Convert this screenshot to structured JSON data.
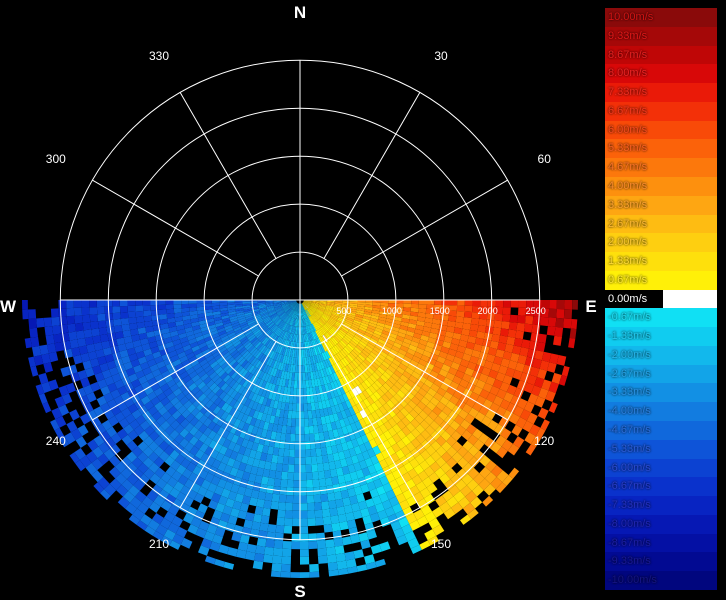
{
  "chart_data": {
    "type": "heatmap",
    "subtype": "polar-radar-velocity",
    "compass": {
      "north": "N",
      "east": "E",
      "south": "S",
      "west": "W"
    },
    "azimuth_labels": [
      {
        "deg": 30,
        "text": "30"
      },
      {
        "deg": 60,
        "text": "60"
      },
      {
        "deg": 120,
        "text": "120"
      },
      {
        "deg": 150,
        "text": "150"
      },
      {
        "deg": 210,
        "text": "210"
      },
      {
        "deg": 240,
        "text": "240"
      },
      {
        "deg": 300,
        "text": "300"
      },
      {
        "deg": 330,
        "text": "330"
      }
    ],
    "range_rings": [
      500,
      1000,
      1500,
      2000,
      2500
    ],
    "range_labels": [
      "500",
      "1000",
      "1500",
      "2000",
      "2500"
    ],
    "max_range": 2900,
    "coverage_azimuth": [
      90,
      270
    ],
    "velocity_range": [
      -10,
      10
    ],
    "field_description": {
      "zero_line_azimuth": 155,
      "positive_side": "east",
      "max_positive_near": 115,
      "negative_side": "west"
    },
    "colorbar": [
      {
        "label": "10.00m/s",
        "color": "#8a0a0a",
        "text_color": "#d21414"
      },
      {
        "label": "9.33m/s",
        "color": "#a50808",
        "text_color": "#e01818"
      },
      {
        "label": "8.67m/s",
        "color": "#bf0606",
        "text_color": "#e62020"
      },
      {
        "label": "8.00m/s",
        "color": "#d80808",
        "text_color": "#ec2424"
      },
      {
        "label": "7.33m/s",
        "color": "#ea1a08",
        "text_color": "#f02c20"
      },
      {
        "label": "6.67m/s",
        "color": "#f33008",
        "text_color": "#f4381e"
      },
      {
        "label": "6.00m/s",
        "color": "#f84a08",
        "text_color": "#f64a1e"
      },
      {
        "label": "5.33m/s",
        "color": "#fb620a",
        "text_color": "#f75e22"
      },
      {
        "label": "4.67m/s",
        "color": "#fc780c",
        "text_color": "#f87228"
      },
      {
        "label": "4.00m/s",
        "color": "#fd900e",
        "text_color": "#f98a2c"
      },
      {
        "label": "3.33m/s",
        "color": "#fea612",
        "text_color": "#faa030"
      },
      {
        "label": "2.67m/s",
        "color": "#febc12",
        "text_color": "#fbb632"
      },
      {
        "label": "2.00m/s",
        "color": "#fecf10",
        "text_color": "#fcc834"
      },
      {
        "label": "1.33m/s",
        "color": "#fee00c",
        "text_color": "#fdd836"
      },
      {
        "label": "0.67m/s",
        "color": "#fff008",
        "text_color": "#fee830"
      },
      {
        "label": "0.00m/s",
        "color": "#ffffff",
        "text_color": "#ffffff"
      },
      {
        "label": "-0.67m/s",
        "color": "#10e0f4",
        "text_color": "#20d8f0"
      },
      {
        "label": "-1.33m/s",
        "color": "#10ccf0",
        "text_color": "#22c8ee"
      },
      {
        "label": "-2.00m/s",
        "color": "#12b8ec",
        "text_color": "#24b4ea"
      },
      {
        "label": "-2.67m/s",
        "color": "#12a4e8",
        "text_color": "#26a2e6"
      },
      {
        "label": "-3.33m/s",
        "color": "#1290e4",
        "text_color": "#2890e2"
      },
      {
        "label": "-4.00m/s",
        "color": "#127ce0",
        "text_color": "#2a7ede"
      },
      {
        "label": "-4.67m/s",
        "color": "#1068dc",
        "text_color": "#2a6cda"
      },
      {
        "label": "-5.33m/s",
        "color": "#0e54d8",
        "text_color": "#2a5ad6"
      },
      {
        "label": "-6.00m/s",
        "color": "#0c42d2",
        "text_color": "#2a4ad2"
      },
      {
        "label": "-6.67m/s",
        "color": "#0a32cc",
        "text_color": "#283cca"
      },
      {
        "label": "-7.33m/s",
        "color": "#0824c2",
        "text_color": "#2430c0"
      },
      {
        "label": "-8.00m/s",
        "color": "#0618b4",
        "text_color": "#2026b4"
      },
      {
        "label": "-8.67m/s",
        "color": "#0410a4",
        "text_color": "#1c1ea6"
      },
      {
        "label": "-9.33m/s",
        "color": "#020a92",
        "text_color": "#181896"
      },
      {
        "label": "-10.00m/s",
        "color": "#01067e",
        "text_color": "#141484"
      }
    ]
  }
}
